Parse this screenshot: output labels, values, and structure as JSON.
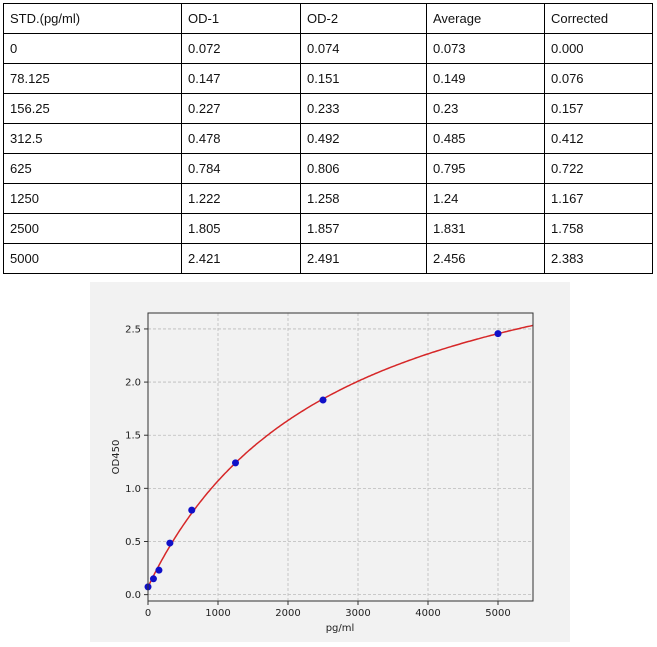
{
  "table": {
    "headers": [
      "STD.(pg/ml)",
      "OD-1",
      "OD-2",
      "Average",
      "Corrected"
    ],
    "rows": [
      [
        "0",
        "0.072",
        "0.074",
        "0.073",
        "0.000"
      ],
      [
        "78.125",
        "0.147",
        "0.151",
        "0.149",
        "0.076"
      ],
      [
        "156.25",
        "0.227",
        "0.233",
        "0.23",
        "0.157"
      ],
      [
        "312.5",
        "0.478",
        "0.492",
        "0.485",
        "0.412"
      ],
      [
        "625",
        "0.784",
        "0.806",
        "0.795",
        "0.722"
      ],
      [
        "1250",
        "1.222",
        "1.258",
        "1.24",
        "1.167"
      ],
      [
        "2500",
        "1.805",
        "1.857",
        "1.831",
        "1.758"
      ],
      [
        "5000",
        "2.421",
        "2.491",
        "2.456",
        "2.383"
      ]
    ]
  },
  "chart_data": {
    "type": "scatter",
    "xlabel": "pg/ml",
    "ylabel": "OD450",
    "xlim": [
      0,
      5500
    ],
    "ylim": [
      -0.06,
      2.65
    ],
    "xticks": [
      "0",
      "1000",
      "2000",
      "3000",
      "4000",
      "5000"
    ],
    "yticks": [
      "0.0",
      "0.5",
      "1.0",
      "1.5",
      "2.0",
      "2.5"
    ],
    "grid": true,
    "points": {
      "x": [
        0,
        78.125,
        156.25,
        312.5,
        625,
        1250,
        2500,
        5000
      ],
      "y": [
        0.073,
        0.149,
        0.23,
        0.485,
        0.795,
        1.24,
        1.831,
        2.456
      ]
    },
    "point_color": "#1010c8",
    "curve_color": "#d62728",
    "fit_curve": true
  }
}
